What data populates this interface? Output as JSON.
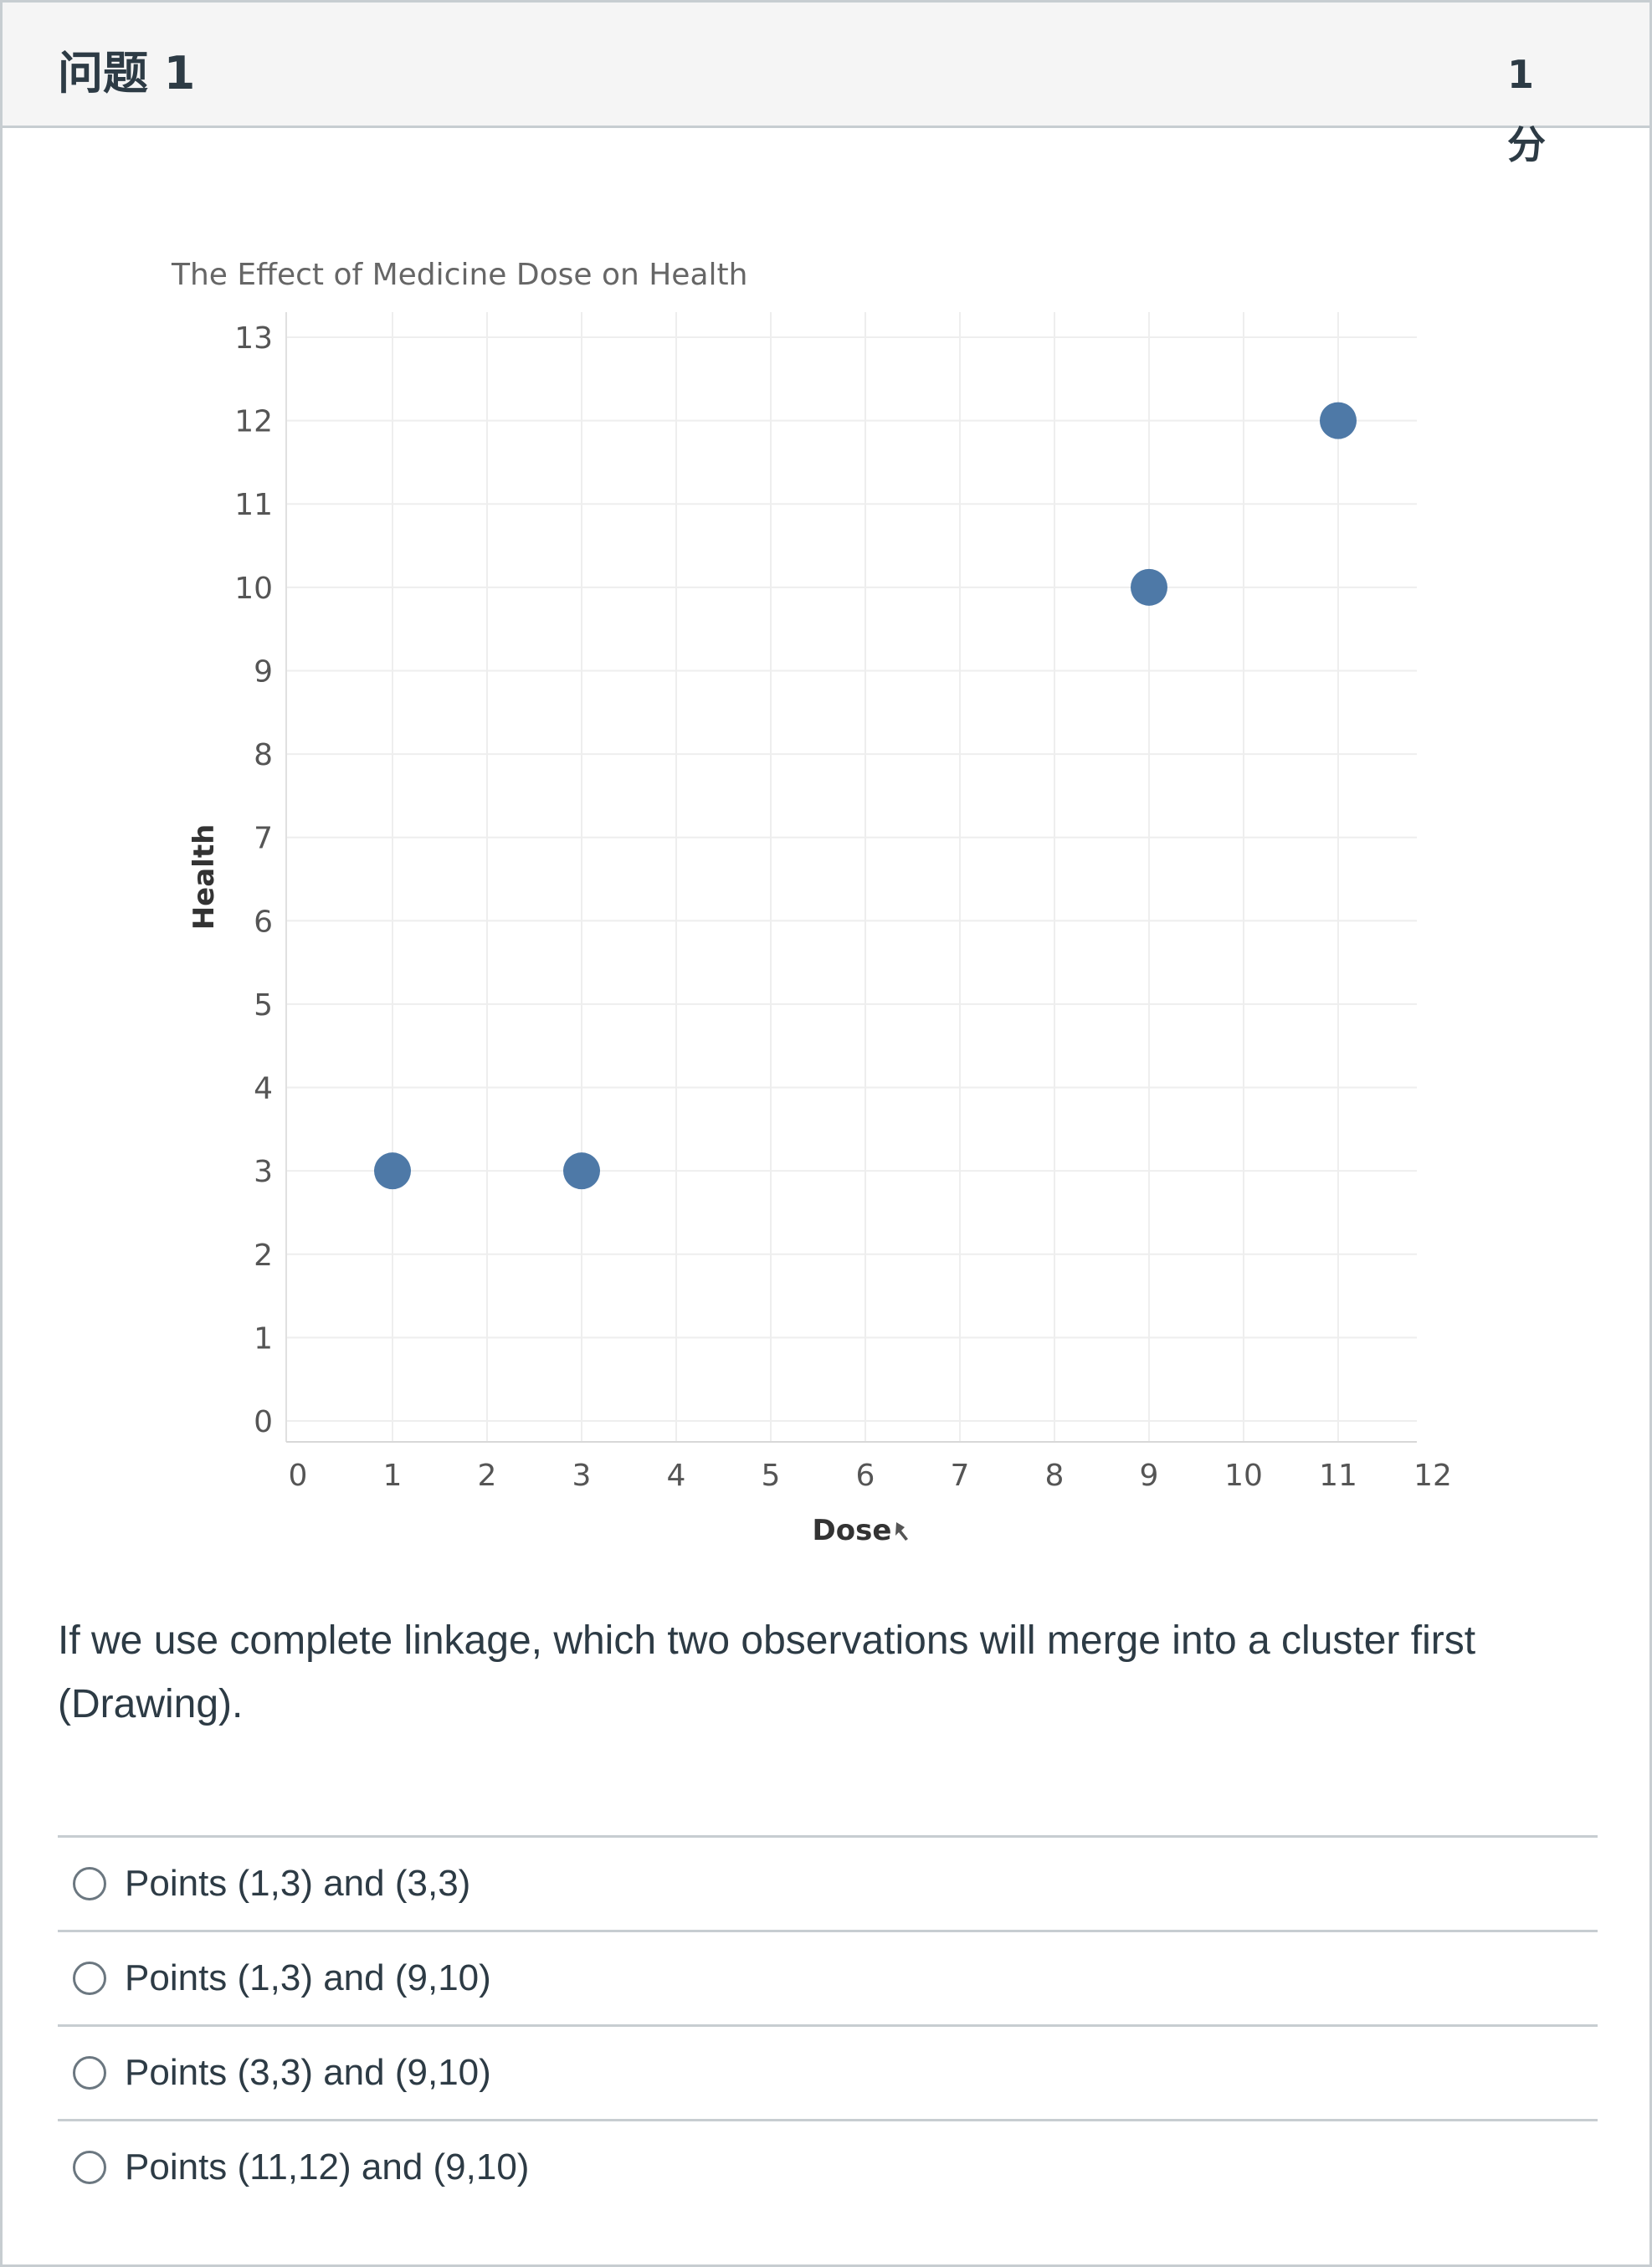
{
  "question": {
    "title": "问题 1",
    "points": "1 分",
    "text": "If we use complete linkage, which two observations will merge into a cluster first (Drawing).",
    "answers": [
      {
        "label": "Points (1,3) and (3,3)",
        "selected": false
      },
      {
        "label": "Points (1,3) and (9,10)",
        "selected": false
      },
      {
        "label": "Points (3,3) and (9,10)",
        "selected": false
      },
      {
        "label": "Points (11,12) and (9,10)",
        "selected": false
      }
    ]
  },
  "chart_data": {
    "type": "scatter",
    "title": "The Effect of Medicine Dose on Health",
    "xlabel": "Dose",
    "ylabel": "Health",
    "x": [
      1,
      3,
      9,
      11
    ],
    "y": [
      3,
      3,
      10,
      12
    ],
    "xlim": [
      0,
      12
    ],
    "ylim": [
      0,
      13
    ],
    "xticks": [
      0,
      1,
      2,
      3,
      4,
      5,
      6,
      7,
      8,
      9,
      10,
      11,
      12
    ],
    "yticks": [
      0,
      1,
      2,
      3,
      4,
      5,
      6,
      7,
      8,
      9,
      10,
      11,
      12,
      13
    ],
    "grid": true,
    "point_color": "#4e79a7"
  }
}
